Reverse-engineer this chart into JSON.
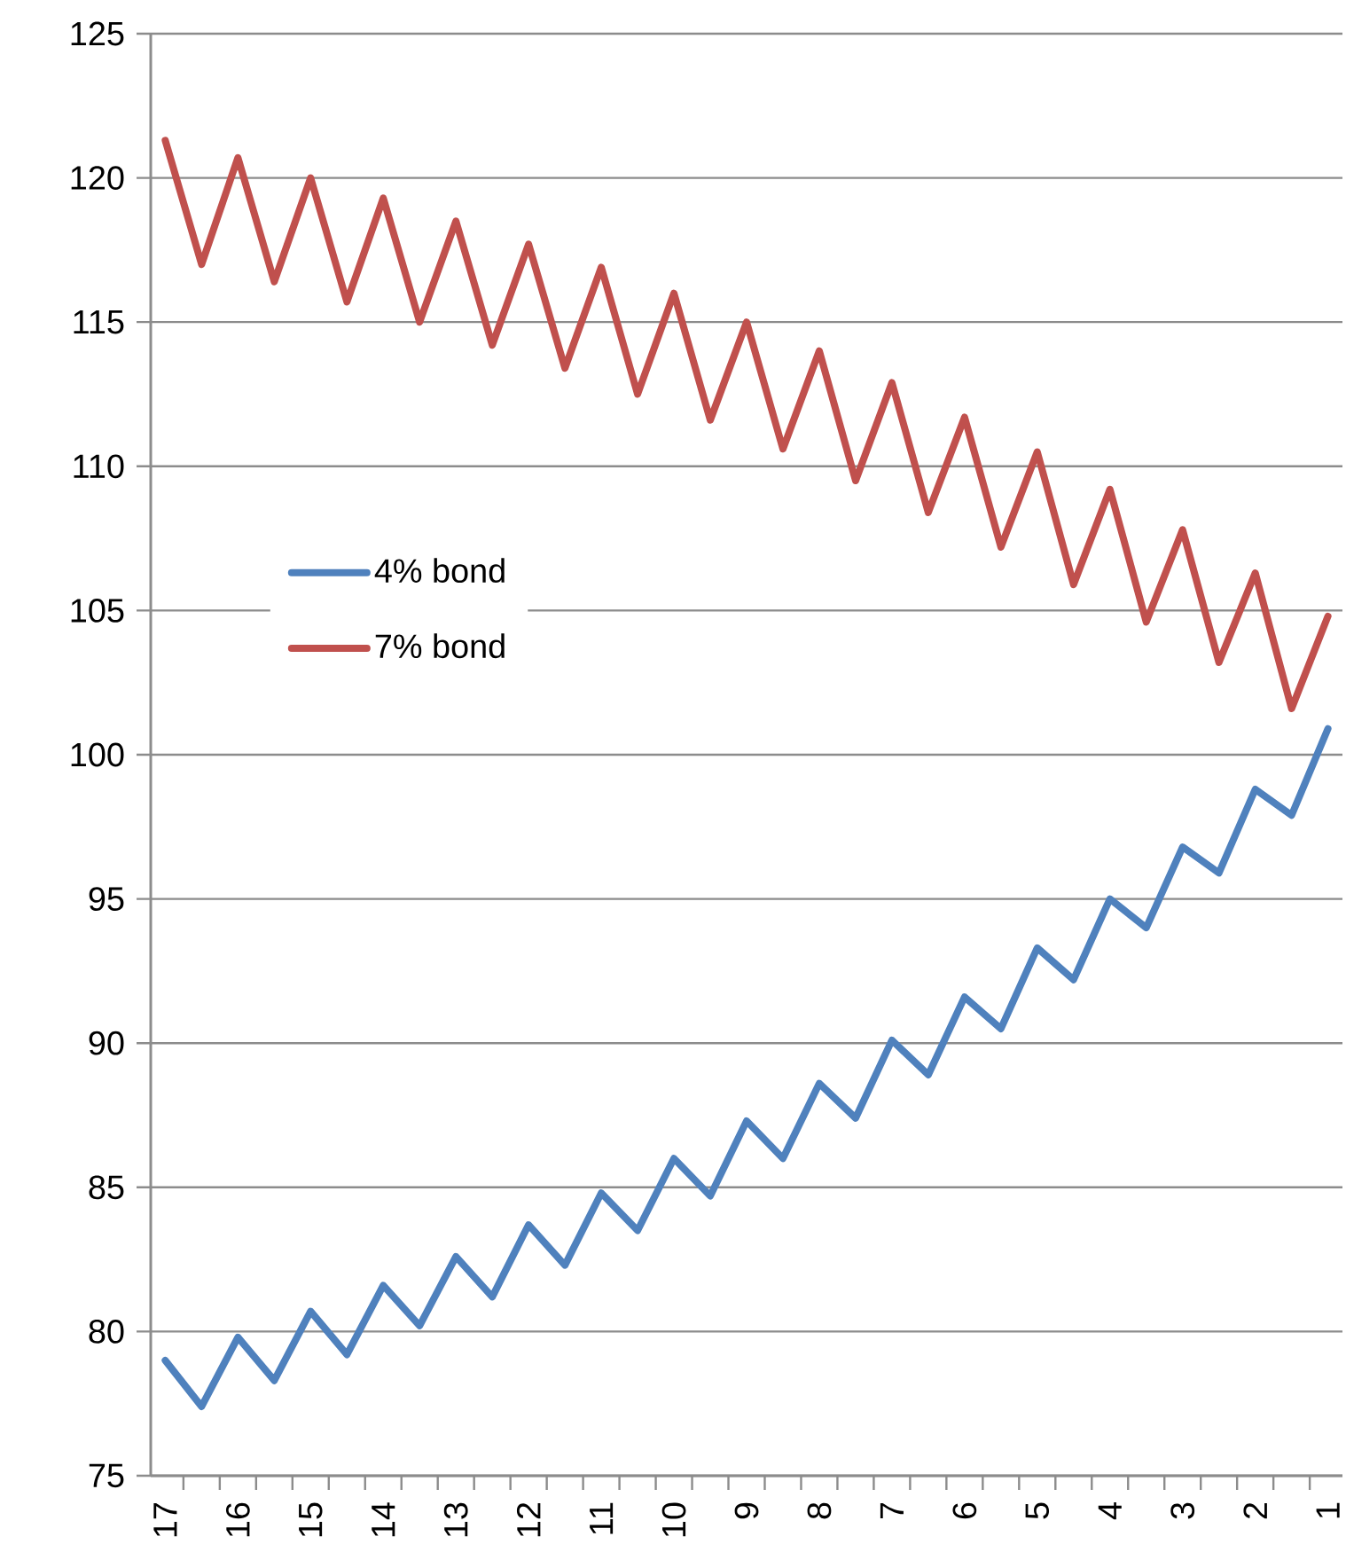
{
  "chart_data": {
    "type": "line",
    "categories": [
      "17",
      null,
      "16",
      null,
      "15",
      null,
      "14",
      null,
      "13",
      null,
      "12",
      null,
      "11",
      null,
      "10",
      null,
      "9",
      null,
      "8",
      null,
      "7",
      null,
      "6",
      null,
      "5",
      null,
      "4",
      null,
      "3",
      null,
      "2",
      null,
      "1"
    ],
    "series": [
      {
        "name": "4% bond",
        "color": "#4f81bd",
        "values": [
          79.0,
          77.4,
          79.8,
          78.3,
          80.7,
          79.2,
          81.6,
          80.2,
          82.6,
          81.2,
          83.7,
          82.3,
          84.8,
          83.5,
          86.0,
          84.7,
          87.3,
          86.0,
          88.6,
          87.4,
          90.1,
          88.9,
          91.6,
          90.5,
          93.3,
          92.2,
          95.0,
          94.0,
          96.8,
          95.9,
          98.8,
          97.9,
          100.9
        ]
      },
      {
        "name": "7% bond",
        "color": "#c0504d",
        "values": [
          121.3,
          117.0,
          120.7,
          116.4,
          120.0,
          115.7,
          119.3,
          115.0,
          118.5,
          114.2,
          117.7,
          113.4,
          116.9,
          112.5,
          116.0,
          111.6,
          115.0,
          110.6,
          114.0,
          109.5,
          112.9,
          108.4,
          111.7,
          107.2,
          110.5,
          105.9,
          109.2,
          104.6,
          107.8,
          103.2,
          106.3,
          101.6,
          104.8
        ]
      }
    ],
    "ylim": [
      75,
      125
    ],
    "yticks": [
      75,
      80,
      85,
      90,
      95,
      100,
      105,
      110,
      115,
      120,
      125
    ],
    "grid": "y",
    "legend": "left",
    "marker": "none",
    "line_style": "solid"
  }
}
